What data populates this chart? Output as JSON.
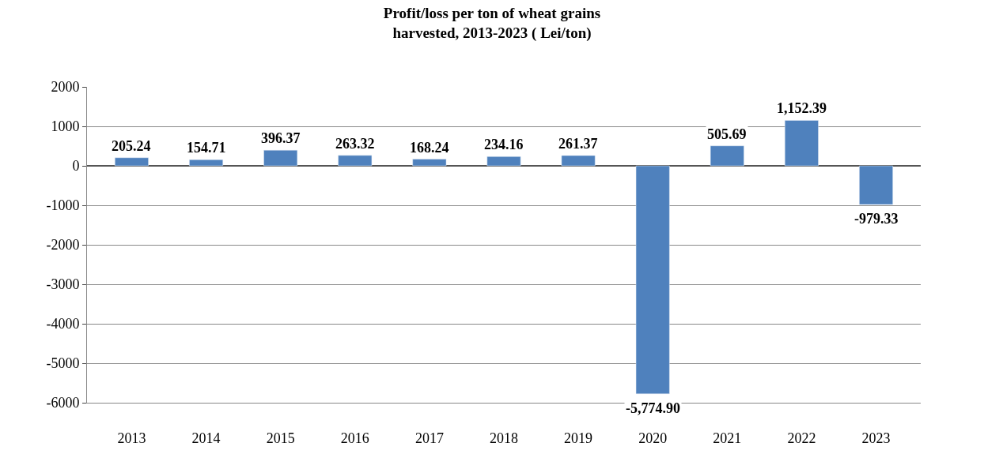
{
  "chart_data": {
    "type": "bar",
    "title": "Profit/loss per ton of wheat grains harvested, 2013-2023 ( Lei/ton)",
    "categories": [
      "2013",
      "2014",
      "2015",
      "2016",
      "2017",
      "2018",
      "2019",
      "2020",
      "2021",
      "2022",
      "2023"
    ],
    "values": [
      205.24,
      154.71,
      396.37,
      263.32,
      168.24,
      234.16,
      261.37,
      -5774.9,
      505.69,
      1152.39,
      -979.33
    ],
    "value_labels": [
      "205.24",
      "154.71",
      "396.37",
      "263.32",
      "168.24",
      "234.16",
      "261.37",
      "-5,774.90",
      "505.69",
      "1,152.39",
      "-979.33"
    ],
    "color": "#4f81bd",
    "ylim": [
      -6000,
      2000
    ],
    "yticks": [
      -6000,
      -5000,
      -4000,
      -3000,
      -2000,
      -1000,
      0,
      1000,
      2000
    ],
    "grid": "y"
  }
}
